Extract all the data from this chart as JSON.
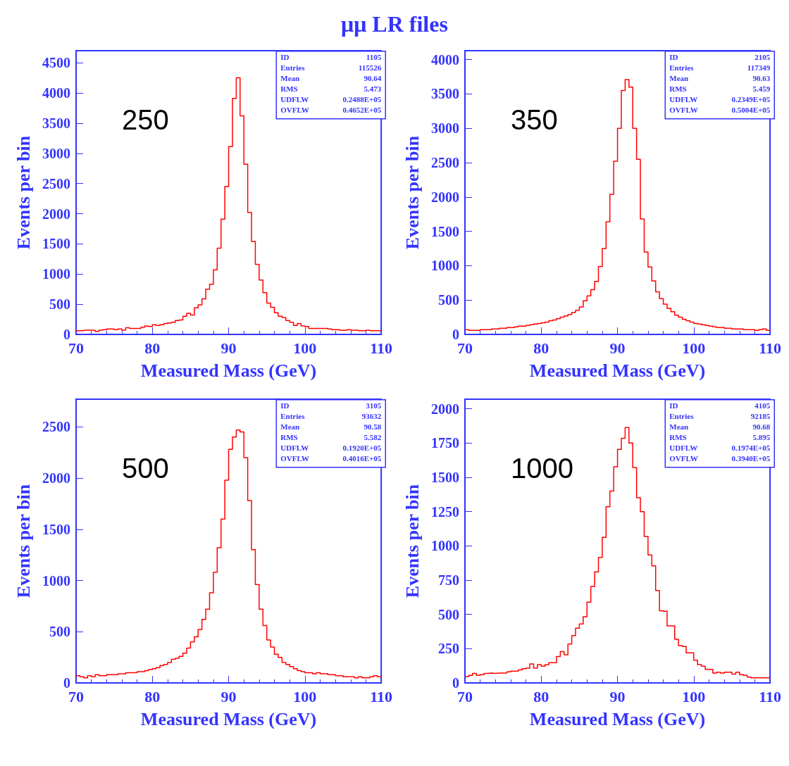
{
  "chart_data": [
    {
      "type": "histogram",
      "title": "μμ LR files",
      "xlabel": "Measured Mass (GeV)",
      "ylabel": "Events per bin",
      "color": "#ff0000",
      "xlim": [
        70,
        110
      ],
      "xticks": [
        70,
        80,
        90,
        100,
        110
      ],
      "ylim": [
        0,
        4700
      ],
      "yticks": [
        0,
        500,
        1000,
        1500,
        2000,
        2500,
        3000,
        3500,
        4000,
        4500
      ],
      "grid": false,
      "annotations": [
        "250",
        "ID",
        "1105",
        "Entries",
        "115526",
        "Mean",
        "90.64",
        "RMS",
        "5.473",
        "UDFLW",
        "0.2488E+05",
        "OVFLW",
        "0.4652E+05"
      ],
      "bins": [
        70,
        70.5,
        71,
        71.5,
        72,
        72.5,
        73,
        73.5,
        74,
        74.5,
        75,
        75.5,
        76,
        76.5,
        77,
        77.5,
        78,
        78.5,
        79,
        79.5,
        80,
        80.5,
        81,
        81.5,
        82,
        82.5,
        83,
        83.5,
        84,
        84.5,
        85,
        85.5,
        86,
        86.5,
        87,
        87.5,
        88,
        88.5,
        89,
        89.5,
        90,
        90.5,
        91,
        91.5,
        92,
        92.5,
        93,
        93.5,
        94,
        94.5,
        95,
        95.5,
        96,
        96.5,
        97,
        97.5,
        98,
        98.5,
        99,
        99.5,
        100,
        100.5,
        101,
        101.5,
        102,
        102.5,
        103,
        103.5,
        104,
        104.5,
        105,
        105.5,
        106,
        106.5,
        107,
        107.5,
        108,
        108.5,
        109,
        109.5,
        110
      ],
      "values": [
        60,
        60,
        70,
        70,
        70,
        50,
        70,
        80,
        90,
        90,
        80,
        90,
        70,
        110,
        100,
        100,
        100,
        120,
        140,
        130,
        160,
        150,
        160,
        180,
        190,
        200,
        230,
        240,
        300,
        350,
        320,
        440,
        490,
        590,
        750,
        830,
        1070,
        1430,
        1910,
        2450,
        3110,
        3910,
        4250,
        3620,
        2820,
        2020,
        1540,
        1160,
        900,
        690,
        520,
        450,
        360,
        300,
        280,
        230,
        200,
        150,
        180,
        140,
        130,
        100,
        100,
        100,
        100,
        100,
        90,
        80,
        80,
        70,
        70,
        80,
        70,
        70,
        60,
        60,
        70,
        60,
        60,
        60
      ]
    },
    {
      "type": "histogram",
      "xlabel": "Measured Mass (GeV)",
      "ylabel": "Events per bin",
      "color": "#ff0000",
      "xlim": [
        70,
        110
      ],
      "xticks": [
        70,
        80,
        90,
        100,
        110
      ],
      "ylim": [
        0,
        4130
      ],
      "yticks": [
        0,
        500,
        1000,
        1500,
        2000,
        2500,
        3000,
        3500,
        4000
      ],
      "grid": false,
      "annotations": [
        "350",
        "ID",
        "2105",
        "Entries",
        "117349",
        "Mean",
        "90.63",
        "RMS",
        "5.459",
        "UDFLW",
        "0.2349E+05",
        "OVFLW",
        "0.5004E+05"
      ],
      "bins": [
        70,
        70.5,
        71,
        71.5,
        72,
        72.5,
        73,
        73.5,
        74,
        74.5,
        75,
        75.5,
        76,
        76.5,
        77,
        77.5,
        78,
        78.5,
        79,
        79.5,
        80,
        80.5,
        81,
        81.5,
        82,
        82.5,
        83,
        83.5,
        84,
        84.5,
        85,
        85.5,
        86,
        86.5,
        87,
        87.5,
        88,
        88.5,
        89,
        89.5,
        90,
        90.5,
        91,
        91.5,
        92,
        92.5,
        93,
        93.5,
        94,
        94.5,
        95,
        95.5,
        96,
        96.5,
        97,
        97.5,
        98,
        98.5,
        99,
        99.5,
        100,
        100.5,
        101,
        101.5,
        102,
        102.5,
        103,
        103.5,
        104,
        104.5,
        105,
        105.5,
        106,
        106.5,
        107,
        107.5,
        108,
        108.5,
        109,
        109.5,
        110
      ],
      "values": [
        70,
        60,
        60,
        60,
        70,
        70,
        70,
        80,
        80,
        90,
        90,
        100,
        100,
        110,
        120,
        120,
        130,
        140,
        150,
        160,
        170,
        180,
        200,
        210,
        230,
        250,
        270,
        290,
        320,
        350,
        400,
        490,
        560,
        650,
        770,
        990,
        1250,
        1640,
        2040,
        2520,
        3000,
        3550,
        3710,
        3600,
        3000,
        2550,
        1680,
        1200,
        980,
        780,
        620,
        520,
        440,
        380,
        330,
        280,
        250,
        220,
        200,
        180,
        160,
        150,
        140,
        130,
        120,
        110,
        100,
        100,
        90,
        90,
        80,
        80,
        80,
        70,
        70,
        70,
        60,
        70,
        80,
        60
      ]
    },
    {
      "type": "histogram",
      "xlabel": "Measured Mass (GeV)",
      "ylabel": "Events per bin",
      "color": "#ff0000",
      "xlim": [
        70,
        110
      ],
      "xticks": [
        70,
        80,
        90,
        100,
        110
      ],
      "ylim": [
        0,
        2770
      ],
      "yticks": [
        0,
        500,
        1000,
        1500,
        2000,
        2500
      ],
      "grid": false,
      "annotations": [
        "500",
        "ID",
        "3105",
        "Entries",
        "93632",
        "Mean",
        "90.58",
        "RMS",
        "5.582",
        "UDFLW",
        "0.1920E+05",
        "OVFLW",
        "0.4016E+05"
      ],
      "bins": [
        70,
        70.5,
        71,
        71.5,
        72,
        72.5,
        73,
        73.5,
        74,
        74.5,
        75,
        75.5,
        76,
        76.5,
        77,
        77.5,
        78,
        78.5,
        79,
        79.5,
        80,
        80.5,
        81,
        81.5,
        82,
        82.5,
        83,
        83.5,
        84,
        84.5,
        85,
        85.5,
        86,
        86.5,
        87,
        87.5,
        88,
        88.5,
        89,
        89.5,
        90,
        90.5,
        91,
        91.5,
        92,
        92.5,
        93,
        93.5,
        94,
        94.5,
        95,
        95.5,
        96,
        96.5,
        97,
        97.5,
        98,
        98.5,
        99,
        99.5,
        100,
        100.5,
        101,
        101.5,
        102,
        102.5,
        103,
        103.5,
        104,
        104.5,
        105,
        105.5,
        106,
        106.5,
        107,
        107.5,
        108,
        108.5,
        109,
        109.5,
        110
      ],
      "values": [
        70,
        60,
        50,
        70,
        60,
        80,
        70,
        70,
        80,
        80,
        80,
        90,
        90,
        100,
        100,
        100,
        110,
        110,
        120,
        130,
        140,
        150,
        170,
        180,
        200,
        230,
        240,
        260,
        290,
        340,
        400,
        450,
        520,
        620,
        720,
        880,
        1080,
        1320,
        1600,
        1980,
        2280,
        2400,
        2470,
        2450,
        2200,
        1780,
        1300,
        960,
        720,
        560,
        420,
        350,
        280,
        250,
        200,
        180,
        160,
        140,
        120,
        110,
        100,
        100,
        90,
        100,
        90,
        90,
        80,
        80,
        70,
        70,
        60,
        60,
        60,
        50,
        60,
        50,
        50,
        60,
        70,
        60
      ]
    },
    {
      "type": "histogram",
      "xlabel": "Measured Mass (GeV)",
      "ylabel": "Events per bin",
      "color": "#ff0000",
      "xlim": [
        70,
        110
      ],
      "xticks": [
        70,
        80,
        90,
        100,
        110
      ],
      "ylim": [
        0,
        2070
      ],
      "yticks": [
        0,
        250,
        500,
        750,
        1000,
        1250,
        1500,
        1750,
        2000
      ],
      "grid": false,
      "annotations": [
        "1000",
        "ID",
        "4105",
        "Entries",
        "92185",
        "Mean",
        "90.68",
        "RMS",
        "5.895",
        "UDFLW",
        "0.1974E+05",
        "OVFLW",
        "0.3940E+05"
      ],
      "bins": [
        70,
        70.5,
        71,
        71.5,
        72,
        72.5,
        73,
        73.5,
        74,
        74.5,
        75,
        75.5,
        76,
        76.5,
        77,
        77.5,
        78,
        78.5,
        79,
        79.5,
        80,
        80.5,
        81,
        81.5,
        82,
        82.5,
        83,
        83.5,
        84,
        84.5,
        85,
        85.5,
        86,
        86.5,
        87,
        87.5,
        88,
        88.5,
        89,
        89.5,
        90,
        90.5,
        91,
        91.5,
        92,
        92.5,
        93,
        93.5,
        94,
        94.5,
        95,
        95.5,
        96,
        96.5,
        97,
        97.5,
        98,
        98.5,
        99,
        99.5,
        100,
        100.5,
        101,
        101.5,
        102,
        102.5,
        103,
        103.5,
        104,
        104.5,
        105,
        105.5,
        106,
        106.5,
        107,
        107.5,
        108,
        108.5,
        109,
        109.5,
        110
      ],
      "values": [
        46,
        55,
        69,
        55,
        60,
        69,
        72,
        69,
        72,
        72,
        72,
        81,
        86,
        86,
        95,
        104,
        108,
        139,
        108,
        134,
        122,
        134,
        148,
        148,
        192,
        228,
        206,
        284,
        346,
        400,
        430,
        483,
        590,
        704,
        810,
        915,
        1062,
        1286,
        1400,
        1577,
        1704,
        1785,
        1863,
        1750,
        1572,
        1351,
        1250,
        1069,
        933,
        854,
        674,
        527,
        522,
        416,
        416,
        319,
        272,
        266,
        219,
        219,
        166,
        134,
        122,
        99,
        99,
        72,
        78,
        72,
        78,
        78,
        64,
        78,
        60,
        55,
        42,
        37,
        37,
        37,
        37,
        37
      ]
    }
  ]
}
